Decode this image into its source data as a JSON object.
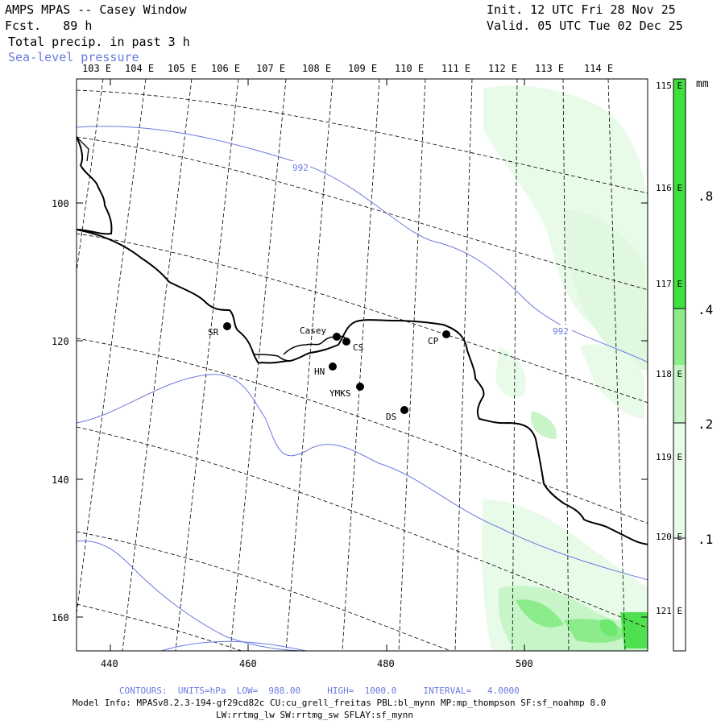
{
  "header": {
    "title": "AMPS MPAS -- Casey Window",
    "fcst": "Fcst.   89 h",
    "init": "Init. 12 UTC Fri 28 Nov 25",
    "valid": "Valid. 05 UTC Tue 02 Dec 25",
    "field": "Total precip. in past 3 h",
    "overlay": "Sea-level pressure"
  },
  "map": {
    "top_lon_labels": [
      "103 E",
      "104 E",
      "105 E",
      "106 E",
      "107 E",
      "108 E",
      "109 E",
      "110 E",
      "111 E",
      "112 E",
      "113 E",
      "114 E"
    ],
    "right_lon_labels": [
      "115 E",
      "116 E",
      "117 E",
      "118 E",
      "119 E",
      "120 E",
      "121 E"
    ],
    "y_ticks": [
      "100",
      "120",
      "140",
      "160"
    ],
    "x_ticks": [
      "440",
      "460",
      "480",
      "500"
    ],
    "isobar_labels": [
      "992",
      "992"
    ],
    "stations": [
      {
        "name": "SR"
      },
      {
        "name": "Casey"
      },
      {
        "name": "CS"
      },
      {
        "name": "CP"
      },
      {
        "name": "HN"
      },
      {
        "name": "YMKS"
      },
      {
        "name": "DS"
      }
    ]
  },
  "colorbar": {
    "units": "mm",
    "labels": [
      ".8",
      ".4",
      ".2",
      ".1"
    ],
    "colors": [
      "#3ee03e",
      "#8cec8c",
      "#c8f5c8",
      "#e8fbe8",
      "#ffffff"
    ]
  },
  "footer": {
    "contours": "CONTOURS:  UNITS=hPa  LOW=  988.00     HIGH=  1000.0     INTERVAL=   4.0000",
    "model_info": "Model Info: MPASv8.2.3-194-gf29cd82c CU:cu_grell_freitas PBL:bl_mynn MP:mp_thompson SF:sf_noahmp 8.0",
    "model_info2": "LW:rrtmg_lw SW:rrtmg_sw SFLAY:sf_mynn"
  }
}
